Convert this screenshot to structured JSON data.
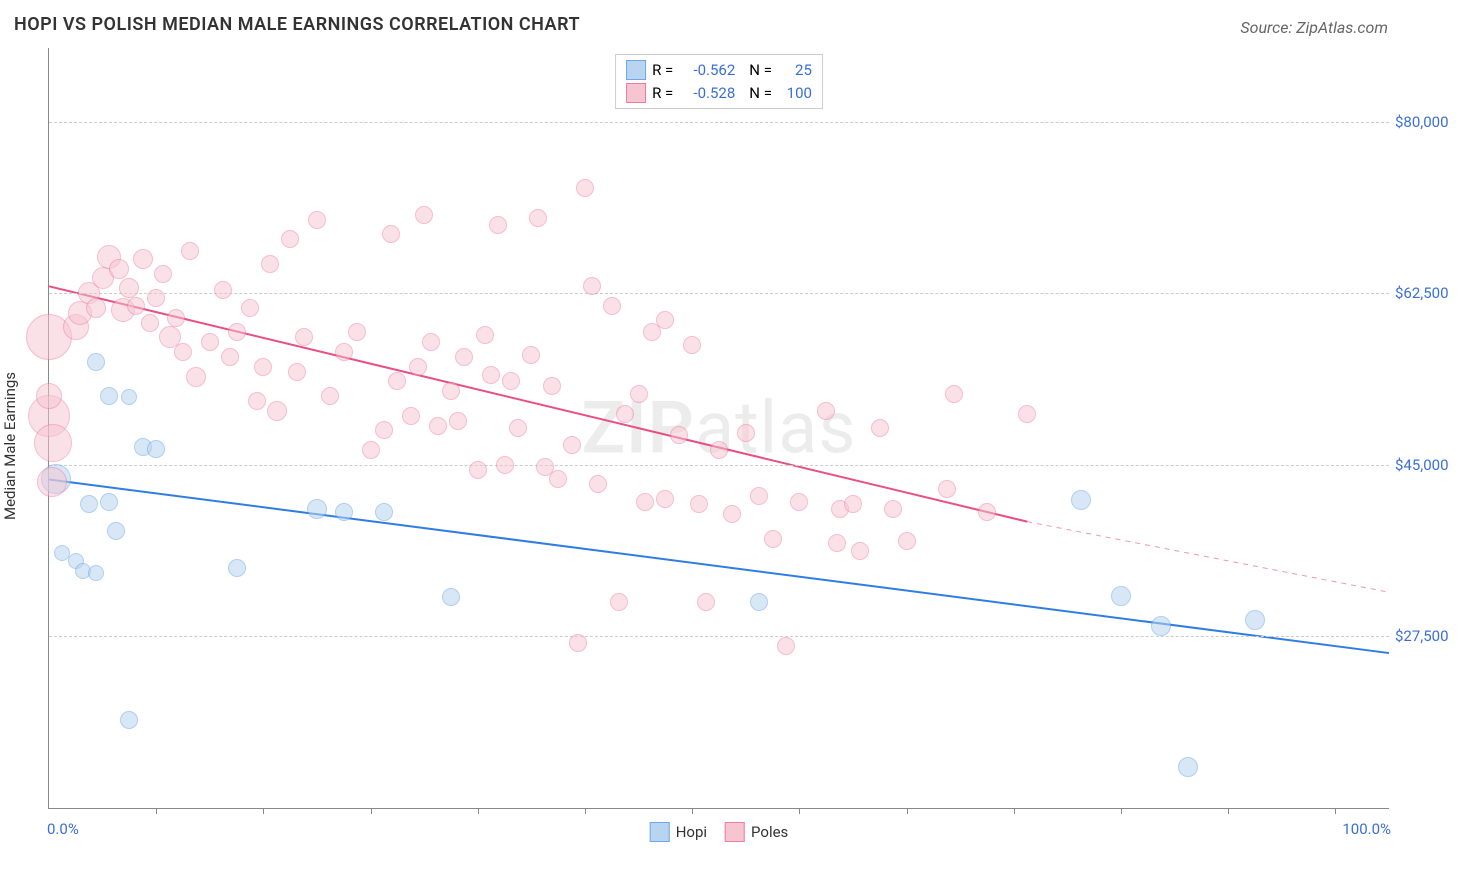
{
  "title": "HOPI VS POLISH MEDIAN MALE EARNINGS CORRELATION CHART",
  "source": "Source: ZipAtlas.com",
  "ylabel": "Median Male Earnings",
  "watermark_a": "ZIP",
  "watermark_b": "atlas",
  "chart": {
    "type": "scatter-correlation",
    "xlim": [
      0,
      100
    ],
    "ylim": [
      10000,
      87500
    ],
    "xticks_labels": {
      "left": "0.0%",
      "right": "100.0%"
    },
    "xticks_minor": [
      8,
      16,
      24,
      32,
      40,
      48,
      56,
      64,
      72,
      80,
      88,
      96
    ],
    "yticks": [
      27500,
      45000,
      62500,
      80000
    ],
    "ytick_labels": [
      "$27,500",
      "$45,000",
      "$62,500",
      "$80,000"
    ],
    "grid_color": "#cccccc",
    "border_color": "#888888",
    "background": "#ffffff",
    "series": [
      {
        "key": "hopi",
        "label": "Hopi",
        "fill": "#b8d4f0",
        "stroke": "#6ea8e8",
        "fill_opacity": 0.55,
        "R": "-0.562",
        "N": "25",
        "trend": {
          "x1": 0,
          "y1": 43500,
          "x2": 100,
          "y2": 25800,
          "color": "#2f7de1",
          "width": 2
        },
        "points": [
          {
            "x": 0.5,
            "y": 43500,
            "r": 14
          },
          {
            "x": 3,
            "y": 41000,
            "r": 8
          },
          {
            "x": 4.5,
            "y": 41200,
            "r": 8
          },
          {
            "x": 1,
            "y": 36000,
            "r": 7
          },
          {
            "x": 2,
            "y": 35200,
            "r": 7
          },
          {
            "x": 2.5,
            "y": 34200,
            "r": 7
          },
          {
            "x": 3.5,
            "y": 34000,
            "r": 7
          },
          {
            "x": 5,
            "y": 38200,
            "r": 8
          },
          {
            "x": 7,
            "y": 46800,
            "r": 8
          },
          {
            "x": 8,
            "y": 46600,
            "r": 8
          },
          {
            "x": 3.5,
            "y": 55500,
            "r": 8
          },
          {
            "x": 4.5,
            "y": 52000,
            "r": 8
          },
          {
            "x": 6,
            "y": 51900,
            "r": 7
          },
          {
            "x": 14,
            "y": 34500,
            "r": 8
          },
          {
            "x": 20,
            "y": 40500,
            "r": 9
          },
          {
            "x": 22,
            "y": 40200,
            "r": 8
          },
          {
            "x": 25,
            "y": 40200,
            "r": 8
          },
          {
            "x": 30,
            "y": 31500,
            "r": 8
          },
          {
            "x": 53,
            "y": 31000,
            "r": 8
          },
          {
            "x": 80,
            "y": 31600,
            "r": 9
          },
          {
            "x": 83,
            "y": 28600,
            "r": 9
          },
          {
            "x": 77,
            "y": 41400,
            "r": 9
          },
          {
            "x": 90,
            "y": 29200,
            "r": 9
          },
          {
            "x": 85,
            "y": 14200,
            "r": 9
          },
          {
            "x": 6,
            "y": 19000,
            "r": 8
          }
        ]
      },
      {
        "key": "poles",
        "label": "Poles",
        "fill": "#f6c5d2",
        "stroke": "#ef7ba0",
        "fill_opacity": 0.5,
        "R": "-0.528",
        "N": "100",
        "trend": {
          "x1": 0,
          "y1": 63200,
          "x2": 73,
          "y2": 39200,
          "color": "#e84f82",
          "width": 2,
          "dash_x2": 100,
          "dash_y2": 32000
        },
        "points": [
          {
            "x": 0,
            "y": 58000,
            "r": 22
          },
          {
            "x": 0,
            "y": 50000,
            "r": 20
          },
          {
            "x": 0.3,
            "y": 47200,
            "r": 18
          },
          {
            "x": 0.2,
            "y": 43200,
            "r": 14
          },
          {
            "x": 0,
            "y": 52000,
            "r": 12
          },
          {
            "x": 2,
            "y": 59000,
            "r": 12
          },
          {
            "x": 2.3,
            "y": 60500,
            "r": 11
          },
          {
            "x": 3,
            "y": 62500,
            "r": 10
          },
          {
            "x": 3.5,
            "y": 61000,
            "r": 9
          },
          {
            "x": 4,
            "y": 64000,
            "r": 10
          },
          {
            "x": 4.5,
            "y": 66200,
            "r": 11
          },
          {
            "x": 5.2,
            "y": 65000,
            "r": 9
          },
          {
            "x": 5.5,
            "y": 60800,
            "r": 11
          },
          {
            "x": 6,
            "y": 63000,
            "r": 9
          },
          {
            "x": 6.5,
            "y": 61200,
            "r": 8
          },
          {
            "x": 7,
            "y": 66000,
            "r": 9
          },
          {
            "x": 7.5,
            "y": 59500,
            "r": 8
          },
          {
            "x": 8,
            "y": 62000,
            "r": 8
          },
          {
            "x": 8.5,
            "y": 64500,
            "r": 8
          },
          {
            "x": 9,
            "y": 58000,
            "r": 10
          },
          {
            "x": 9.5,
            "y": 60000,
            "r": 8
          },
          {
            "x": 10,
            "y": 56500,
            "r": 8
          },
          {
            "x": 10.5,
            "y": 66800,
            "r": 8
          },
          {
            "x": 11,
            "y": 54000,
            "r": 9
          },
          {
            "x": 12,
            "y": 57500,
            "r": 8
          },
          {
            "x": 13,
            "y": 62800,
            "r": 8
          },
          {
            "x": 13.5,
            "y": 56000,
            "r": 8
          },
          {
            "x": 14,
            "y": 58500,
            "r": 8
          },
          {
            "x": 15,
            "y": 61000,
            "r": 8
          },
          {
            "x": 16,
            "y": 55000,
            "r": 8
          },
          {
            "x": 16.5,
            "y": 65500,
            "r": 8
          },
          {
            "x": 17,
            "y": 50500,
            "r": 9
          },
          {
            "x": 18,
            "y": 68000,
            "r": 8
          },
          {
            "x": 18.5,
            "y": 54500,
            "r": 8
          },
          {
            "x": 19,
            "y": 58000,
            "r": 8
          },
          {
            "x": 20,
            "y": 70000,
            "r": 8
          },
          {
            "x": 21,
            "y": 52000,
            "r": 8
          },
          {
            "x": 22,
            "y": 56500,
            "r": 8
          },
          {
            "x": 23,
            "y": 58500,
            "r": 8
          },
          {
            "x": 24,
            "y": 46500,
            "r": 8
          },
          {
            "x": 25,
            "y": 48500,
            "r": 8
          },
          {
            "x": 25.5,
            "y": 68500,
            "r": 8
          },
          {
            "x": 26,
            "y": 53500,
            "r": 8
          },
          {
            "x": 27,
            "y": 50000,
            "r": 8
          },
          {
            "x": 27.5,
            "y": 55000,
            "r": 8
          },
          {
            "x": 28,
            "y": 70500,
            "r": 8
          },
          {
            "x": 28.5,
            "y": 57500,
            "r": 8
          },
          {
            "x": 29,
            "y": 49000,
            "r": 8
          },
          {
            "x": 30,
            "y": 52500,
            "r": 8
          },
          {
            "x": 30.5,
            "y": 49500,
            "r": 8
          },
          {
            "x": 31,
            "y": 56000,
            "r": 8
          },
          {
            "x": 32,
            "y": 44500,
            "r": 8
          },
          {
            "x": 32.5,
            "y": 58200,
            "r": 8
          },
          {
            "x": 33,
            "y": 54200,
            "r": 8
          },
          {
            "x": 33.5,
            "y": 69500,
            "r": 8
          },
          {
            "x": 34,
            "y": 45000,
            "r": 8
          },
          {
            "x": 34.5,
            "y": 53500,
            "r": 8
          },
          {
            "x": 35,
            "y": 48800,
            "r": 8
          },
          {
            "x": 36,
            "y": 56200,
            "r": 8
          },
          {
            "x": 36.5,
            "y": 70200,
            "r": 8
          },
          {
            "x": 37,
            "y": 44800,
            "r": 8
          },
          {
            "x": 37.5,
            "y": 53000,
            "r": 8
          },
          {
            "x": 38,
            "y": 43500,
            "r": 8
          },
          {
            "x": 39,
            "y": 47000,
            "r": 8
          },
          {
            "x": 40,
            "y": 73200,
            "r": 8
          },
          {
            "x": 40.5,
            "y": 63200,
            "r": 8
          },
          {
            "x": 41,
            "y": 43000,
            "r": 8
          },
          {
            "x": 42,
            "y": 61200,
            "r": 8
          },
          {
            "x": 42.5,
            "y": 31000,
            "r": 8
          },
          {
            "x": 43,
            "y": 50200,
            "r": 8
          },
          {
            "x": 44,
            "y": 52200,
            "r": 8
          },
          {
            "x": 44.5,
            "y": 41200,
            "r": 8
          },
          {
            "x": 45,
            "y": 58500,
            "r": 8
          },
          {
            "x": 46,
            "y": 41500,
            "r": 8
          },
          {
            "x": 47,
            "y": 48000,
            "r": 8
          },
          {
            "x": 48,
            "y": 57200,
            "r": 8
          },
          {
            "x": 48.5,
            "y": 41000,
            "r": 8
          },
          {
            "x": 49,
            "y": 31000,
            "r": 8
          },
          {
            "x": 50,
            "y": 46500,
            "r": 8
          },
          {
            "x": 51,
            "y": 40000,
            "r": 8
          },
          {
            "x": 52,
            "y": 48200,
            "r": 8
          },
          {
            "x": 53,
            "y": 41800,
            "r": 8
          },
          {
            "x": 54,
            "y": 37400,
            "r": 8
          },
          {
            "x": 55,
            "y": 26500,
            "r": 8
          },
          {
            "x": 56,
            "y": 41200,
            "r": 8
          },
          {
            "x": 58,
            "y": 50500,
            "r": 8
          },
          {
            "x": 58.8,
            "y": 37000,
            "r": 8
          },
          {
            "x": 59,
            "y": 40500,
            "r": 8
          },
          {
            "x": 60,
            "y": 41000,
            "r": 8
          },
          {
            "x": 60.5,
            "y": 36200,
            "r": 8
          },
          {
            "x": 62,
            "y": 48800,
            "r": 8
          },
          {
            "x": 63,
            "y": 40500,
            "r": 8
          },
          {
            "x": 64,
            "y": 37200,
            "r": 8
          },
          {
            "x": 67,
            "y": 42500,
            "r": 8
          },
          {
            "x": 67.5,
            "y": 52200,
            "r": 8
          },
          {
            "x": 70,
            "y": 40200,
            "r": 8
          },
          {
            "x": 73,
            "y": 50200,
            "r": 8
          },
          {
            "x": 46,
            "y": 59800,
            "r": 8
          },
          {
            "x": 15.5,
            "y": 51500,
            "r": 8
          },
          {
            "x": 39.5,
            "y": 26800,
            "r": 8
          }
        ]
      }
    ]
  },
  "legend_top": {
    "r_label": "R =",
    "n_label": "N ="
  },
  "legend_bottom": [
    "Hopi",
    "Poles"
  ],
  "colors": {
    "stat_value": "#3b6fd6",
    "text": "#333333"
  }
}
